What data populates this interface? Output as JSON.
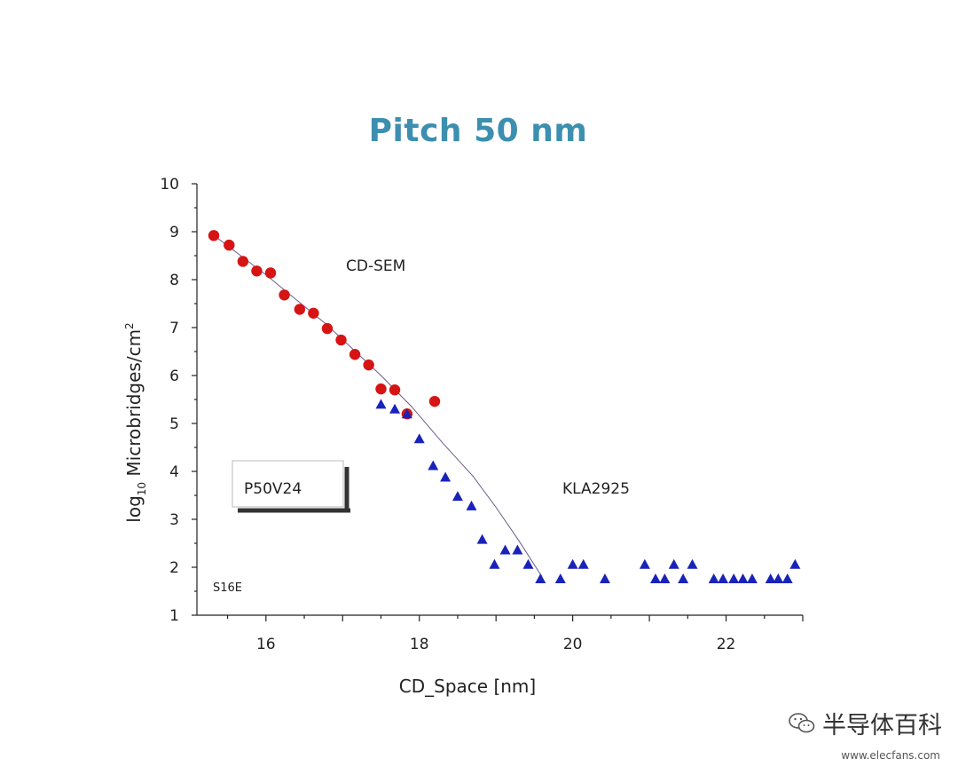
{
  "colors": {
    "title": "#3d8fb0",
    "cdsem": "#d61414",
    "kla": "#1a23b8",
    "fit": "#6b5b8a"
  },
  "chart_data": {
    "type": "scatter",
    "title": "Pitch 50 nm",
    "xlabel": "CD_Space  [nm]",
    "ylabel_main": "log",
    "ylabel_sub": "10",
    "ylabel_rest": " Microbridges/cm",
    "ylabel_sup": "2",
    "xlim": [
      15.1,
      23.0
    ],
    "ylim": [
      1,
      10
    ],
    "xticks": [
      16,
      18,
      20,
      22
    ],
    "yticks": [
      1,
      2,
      3,
      4,
      5,
      6,
      7,
      8,
      9,
      10
    ],
    "series": [
      {
        "name": "CD-SEM",
        "marker": "circle",
        "x": [
          15.32,
          15.52,
          15.7,
          15.88,
          16.06,
          16.24,
          16.44,
          16.62,
          16.8,
          16.98,
          17.16,
          17.34,
          17.5,
          17.68,
          17.84,
          18.2
        ],
        "y": [
          8.92,
          8.72,
          8.38,
          8.18,
          8.14,
          7.68,
          7.38,
          7.3,
          6.98,
          6.74,
          6.44,
          6.22,
          5.72,
          5.7,
          5.2,
          5.46
        ]
      },
      {
        "name": "KLA2925",
        "marker": "triangle",
        "x": [
          17.5,
          17.68,
          17.84,
          18.0,
          18.18,
          18.34,
          18.5,
          18.68,
          18.82,
          18.98,
          19.12,
          19.28,
          19.42,
          19.58,
          19.84,
          20.0,
          20.14,
          20.42,
          20.94,
          21.08,
          21.2,
          21.32,
          21.44,
          21.56,
          21.84,
          21.96,
          22.1,
          22.22,
          22.34,
          22.58,
          22.68,
          22.8,
          22.9
        ],
        "y": [
          5.4,
          5.3,
          5.2,
          4.68,
          4.12,
          3.88,
          3.48,
          3.28,
          2.58,
          2.06,
          2.36,
          2.36,
          2.06,
          1.76,
          1.76,
          2.06,
          2.06,
          1.76,
          2.06,
          1.76,
          1.76,
          2.06,
          1.76,
          2.06,
          1.76,
          1.76,
          1.76,
          1.76,
          1.76,
          1.76,
          1.76,
          1.76,
          2.06
        ]
      }
    ],
    "fit_line": {
      "x": [
        15.3,
        16.0,
        16.8,
        17.5,
        17.9,
        18.3,
        18.7,
        19.0,
        19.3,
        19.6
      ],
      "y": [
        8.95,
        8.1,
        7.05,
        6.0,
        5.35,
        4.6,
        3.9,
        3.25,
        2.55,
        1.8
      ]
    },
    "annotations": {
      "cdsem_label": "CD-SEM",
      "kla_label": "KLA2925",
      "sample_label": "P50V24",
      "corner_label": "S16E"
    }
  },
  "watermark": {
    "text": "半导体百科",
    "url": "www.elecfans.com"
  }
}
